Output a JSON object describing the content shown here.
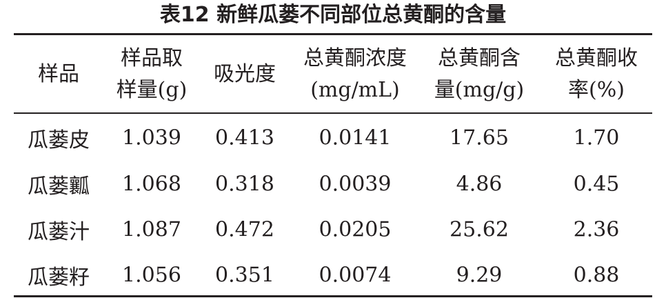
{
  "title": "表12 新鲜瓜蒌不同部位总黄酮的含量",
  "table": {
    "header": [
      [
        "样品"
      ],
      [
        "样品取",
        "样量(g)"
      ],
      [
        "吸光度"
      ],
      [
        "总黄酮浓度",
        "(mg/mL)"
      ],
      [
        "总黄酮含",
        "量(mg/g)"
      ],
      [
        "总黄酮收",
        "率(%)"
      ]
    ],
    "rows": [
      [
        "瓜蒌皮",
        "1.039",
        "0.413",
        "0.0141",
        "17.65",
        "1.70"
      ],
      [
        "瓜蒌瓤",
        "1.068",
        "0.318",
        "0.0039",
        "4.86",
        "0.45"
      ],
      [
        "瓜蒌汁",
        "1.087",
        "0.472",
        "0.0205",
        "25.62",
        "2.36"
      ],
      [
        "瓜蒌籽",
        "1.056",
        "0.351",
        "0.0074",
        "9.29",
        "0.88"
      ]
    ]
  }
}
